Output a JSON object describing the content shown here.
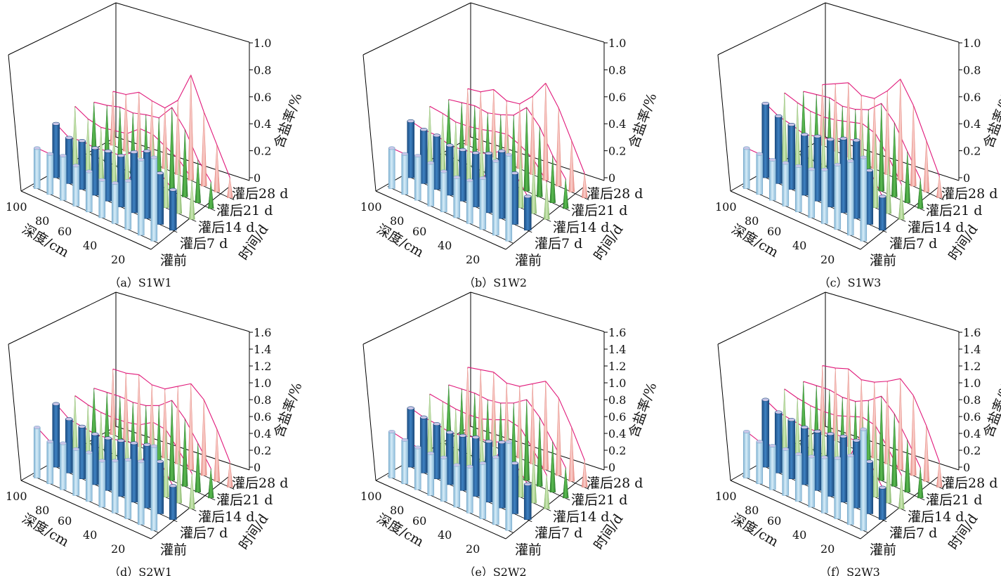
{
  "figure": {
    "axis_labels": {
      "depth": "深度/cm",
      "time": "时间/d",
      "salt": "含盐率/%"
    },
    "depth_ticks": [
      "100",
      "80",
      "60",
      "40",
      "20"
    ],
    "time_ticks": [
      "灌前",
      "灌后7 d",
      "灌后14 d",
      "灌后21 d",
      "灌后28 d"
    ],
    "colors": {
      "pre_irrigation": "#a8d0e8",
      "day7": "#2f6da8",
      "day14": "#a9d08e",
      "day21": "#3f9b3f",
      "day28": "#f1a7a0",
      "envelope": "#e0187a",
      "axes": "#000000"
    }
  },
  "chart_data": [
    {
      "type": "bar3d",
      "caption": "（a）S1W1",
      "xlabel": "深度/cm",
      "ylabel": "时间/d",
      "zlabel": "含盐率/%",
      "zlim": [
        0,
        1.0
      ],
      "zticks": [
        "0",
        "0.2",
        "0.4",
        "0.6",
        "0.8",
        "1.0"
      ],
      "depths": [
        10,
        20,
        30,
        40,
        50,
        60,
        70,
        80,
        90,
        100
      ],
      "series": [
        {
          "name": "灌前",
          "values": [
            0.62,
            0.56,
            0.36,
            0.3,
            0.28,
            0.3,
            0.3,
            0.33,
            0.3,
            0.3
          ]
        },
        {
          "name": "灌后7 d",
          "values": [
            0.3,
            0.38,
            0.5,
            0.45,
            0.38,
            0.37,
            0.35,
            0.36,
            0.34,
            0.4
          ]
        },
        {
          "name": "灌后14 d",
          "values": [
            0.3,
            0.4,
            0.45,
            0.5,
            0.5,
            0.42,
            0.4,
            0.38,
            0.4,
            0.45
          ]
        },
        {
          "name": "灌后21 d",
          "values": [
            0.2,
            0.32,
            0.5,
            0.62,
            0.5,
            0.48,
            0.45,
            0.45,
            0.42,
            0.4
          ]
        },
        {
          "name": "灌后28 d",
          "values": [
            0.15,
            0.35,
            0.55,
            0.78,
            0.55,
            0.45,
            0.46,
            0.48,
            0.42,
            0.4
          ]
        }
      ]
    },
    {
      "type": "bar3d",
      "caption": "（b）S1W2",
      "xlabel": "深度/cm",
      "ylabel": "时间/d",
      "zlabel": "含盐率/%",
      "zlim": [
        0,
        1.0
      ],
      "zticks": [
        "0",
        "0.2",
        "0.4",
        "0.6",
        "0.8",
        "1.0"
      ],
      "depths": [
        10,
        20,
        30,
        40,
        50,
        60,
        70,
        80,
        90,
        100
      ],
      "series": [
        {
          "name": "灌前",
          "values": [
            0.64,
            0.55,
            0.38,
            0.32,
            0.3,
            0.3,
            0.32,
            0.33,
            0.3,
            0.3
          ]
        },
        {
          "name": "灌后7 d",
          "values": [
            0.25,
            0.38,
            0.5,
            0.44,
            0.4,
            0.38,
            0.37,
            0.4,
            0.4,
            0.42
          ]
        },
        {
          "name": "灌后14 d",
          "values": [
            0.28,
            0.4,
            0.46,
            0.5,
            0.48,
            0.45,
            0.43,
            0.42,
            0.44,
            0.45
          ]
        },
        {
          "name": "灌后21 d",
          "values": [
            0.22,
            0.35,
            0.52,
            0.62,
            0.52,
            0.48,
            0.45,
            0.46,
            0.44,
            0.42
          ]
        },
        {
          "name": "灌后28 d",
          "values": [
            0.18,
            0.38,
            0.58,
            0.72,
            0.58,
            0.48,
            0.46,
            0.5,
            0.44,
            0.42
          ]
        }
      ]
    },
    {
      "type": "bar3d",
      "caption": "（c）S1W3",
      "xlabel": "深度/cm",
      "ylabel": "时间/d",
      "zlabel": "含盐率/%",
      "zlim": [
        0,
        1.0
      ],
      "zticks": [
        "0",
        "0.2",
        "0.4",
        "0.6",
        "0.8",
        "1.0"
      ],
      "depths": [
        10,
        20,
        30,
        40,
        50,
        60,
        70,
        80,
        90,
        100
      ],
      "series": [
        {
          "name": "灌前",
          "values": [
            0.62,
            0.55,
            0.48,
            0.4,
            0.36,
            0.34,
            0.32,
            0.3,
            0.3,
            0.3
          ]
        },
        {
          "name": "灌后7 d",
          "values": [
            0.25,
            0.4,
            0.58,
            0.55,
            0.5,
            0.48,
            0.45,
            0.48,
            0.5,
            0.55
          ]
        },
        {
          "name": "灌后14 d",
          "values": [
            0.26,
            0.42,
            0.55,
            0.58,
            0.55,
            0.52,
            0.5,
            0.5,
            0.52,
            0.55
          ]
        },
        {
          "name": "灌后21 d",
          "values": [
            0.22,
            0.38,
            0.55,
            0.65,
            0.56,
            0.52,
            0.5,
            0.52,
            0.5,
            0.48
          ]
        },
        {
          "name": "灌后28 d",
          "values": [
            0.16,
            0.38,
            0.6,
            0.75,
            0.62,
            0.52,
            0.5,
            0.55,
            0.5,
            0.45
          ]
        }
      ]
    },
    {
      "type": "bar3d",
      "caption": "（d）S2W1",
      "xlabel": "深度/cm",
      "ylabel": "时间/d",
      "zlabel": "含盐率/%",
      "zlim": [
        0,
        1.6
      ],
      "zticks": [
        "0",
        "0.2",
        "0.4",
        "0.6",
        "0.8",
        "1.0",
        "1.2",
        "1.4",
        "1.6"
      ],
      "depths": [
        10,
        20,
        30,
        40,
        50,
        60,
        70,
        80,
        90,
        100
      ],
      "series": [
        {
          "name": "灌前",
          "values": [
            1.0,
            0.75,
            0.7,
            0.62,
            0.55,
            0.58,
            0.55,
            0.55,
            0.5,
            0.6
          ]
        },
        {
          "name": "灌后7 d",
          "values": [
            0.4,
            0.62,
            0.75,
            0.7,
            0.66,
            0.62,
            0.6,
            0.62,
            0.64,
            0.75
          ]
        },
        {
          "name": "灌后14 d",
          "values": [
            0.42,
            0.62,
            0.8,
            0.82,
            0.72,
            0.68,
            0.66,
            0.66,
            0.68,
            0.72
          ]
        },
        {
          "name": "灌后21 d",
          "values": [
            0.35,
            0.58,
            0.8,
            0.95,
            0.82,
            0.75,
            0.72,
            0.72,
            0.7,
            0.68
          ]
        },
        {
          "name": "灌后28 d",
          "values": [
            0.3,
            0.62,
            0.9,
            1.02,
            0.92,
            0.82,
            0.8,
            0.85,
            0.8,
            0.78
          ]
        }
      ]
    },
    {
      "type": "bar3d",
      "caption": "（e）S2W2",
      "xlabel": "深度/cm",
      "ylabel": "时间/d",
      "zlabel": "含盐率/%",
      "zlim": [
        0,
        1.6
      ],
      "zticks": [
        "0",
        "0.2",
        "0.4",
        "0.6",
        "0.8",
        "1.0",
        "1.2",
        "1.4",
        "1.6"
      ],
      "depths": [
        10,
        20,
        30,
        40,
        50,
        60,
        70,
        80,
        90,
        100
      ],
      "series": [
        {
          "name": "灌前",
          "values": [
            1.05,
            0.8,
            0.66,
            0.55,
            0.5,
            0.52,
            0.5,
            0.5,
            0.52,
            0.55
          ]
        },
        {
          "name": "灌后7 d",
          "values": [
            0.42,
            0.6,
            0.78,
            0.72,
            0.7,
            0.65,
            0.62,
            0.65,
            0.66,
            0.7
          ]
        },
        {
          "name": "灌后14 d",
          "values": [
            0.4,
            0.62,
            0.82,
            0.85,
            0.78,
            0.72,
            0.7,
            0.7,
            0.72,
            0.74
          ]
        },
        {
          "name": "灌后21 d",
          "values": [
            0.36,
            0.6,
            0.82,
            0.96,
            0.85,
            0.78,
            0.75,
            0.76,
            0.74,
            0.72
          ]
        },
        {
          "name": "灌后28 d",
          "values": [
            0.32,
            0.64,
            0.92,
            1.05,
            0.95,
            0.85,
            0.82,
            0.88,
            0.84,
            0.8
          ]
        }
      ]
    },
    {
      "type": "bar3d",
      "caption": "（f）S2W3",
      "xlabel": "深度/cm",
      "ylabel": "时间/d",
      "zlabel": "含盐率/%",
      "zlim": [
        0,
        1.6
      ],
      "zticks": [
        "0",
        "0.2",
        "0.4",
        "0.6",
        "0.8",
        "1.0",
        "1.2",
        "1.4",
        "1.6"
      ],
      "depths": [
        10,
        20,
        30,
        40,
        50,
        60,
        70,
        80,
        90,
        100
      ],
      "series": [
        {
          "name": "灌前",
          "values": [
            1.2,
            0.82,
            0.72,
            0.66,
            0.6,
            0.56,
            0.55,
            0.52,
            0.5,
            0.55
          ]
        },
        {
          "name": "灌后7 d",
          "values": [
            0.38,
            0.62,
            0.8,
            0.78,
            0.74,
            0.7,
            0.68,
            0.7,
            0.72,
            0.8
          ]
        },
        {
          "name": "灌后14 d",
          "values": [
            0.4,
            0.64,
            0.85,
            0.88,
            0.82,
            0.76,
            0.74,
            0.74,
            0.76,
            0.8
          ]
        },
        {
          "name": "灌后21 d",
          "values": [
            0.36,
            0.62,
            0.86,
            1.0,
            0.88,
            0.8,
            0.78,
            0.8,
            0.78,
            0.76
          ]
        },
        {
          "name": "灌后28 d",
          "values": [
            0.3,
            0.66,
            0.95,
            1.08,
            0.98,
            0.9,
            0.86,
            0.92,
            0.86,
            0.82
          ]
        }
      ]
    }
  ]
}
